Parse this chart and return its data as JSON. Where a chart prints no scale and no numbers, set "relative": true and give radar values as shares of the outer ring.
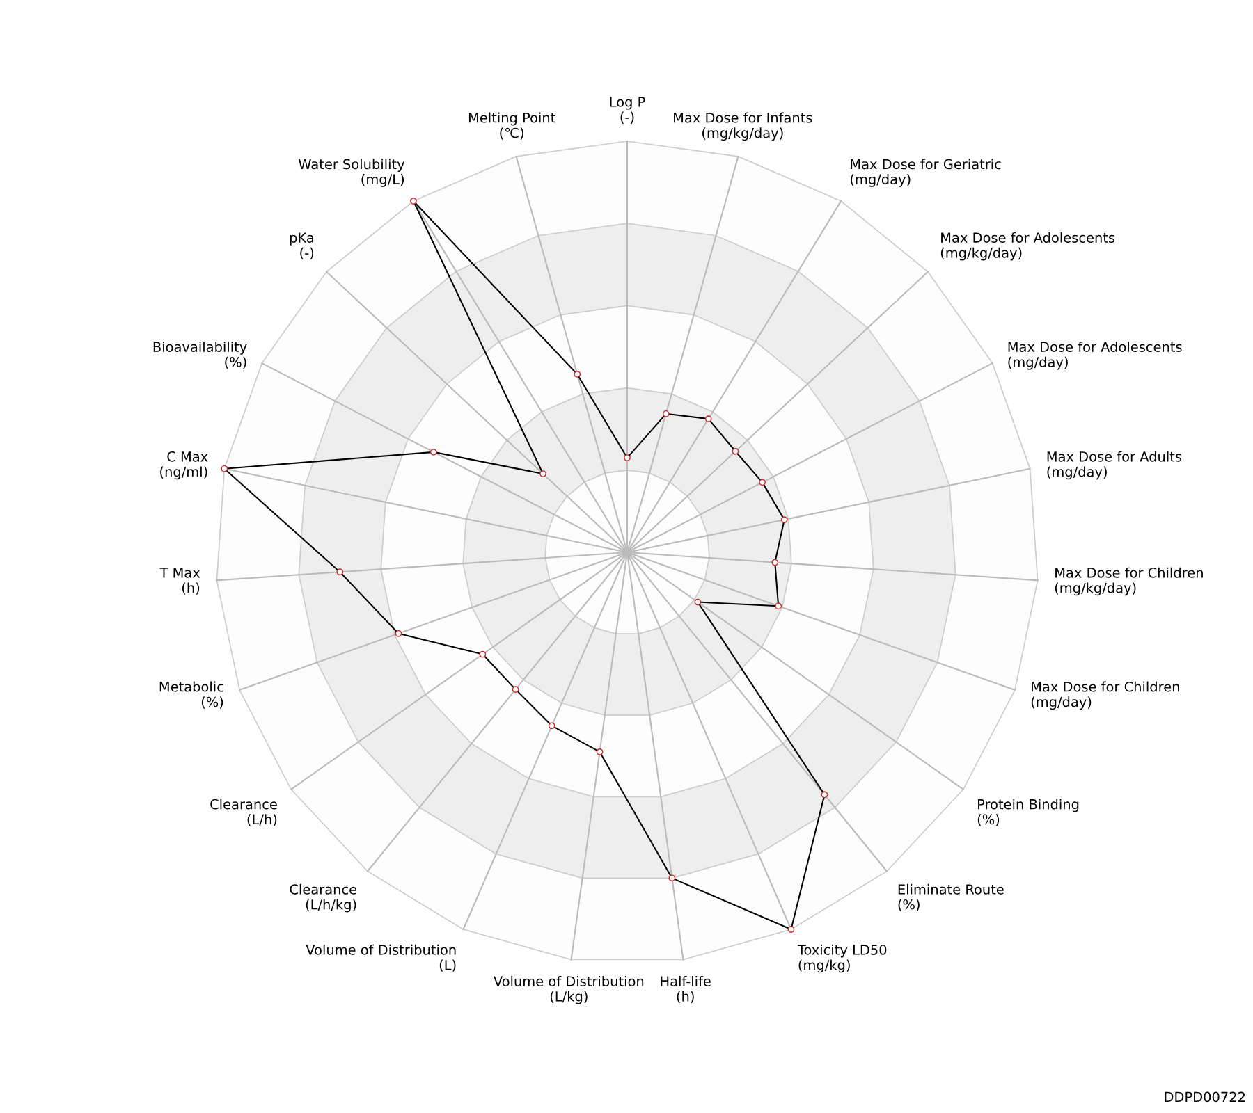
{
  "chart_data": {
    "type": "radar",
    "relative": true,
    "marker": "circle",
    "grid": true,
    "categories": [
      "Log P\n(-)",
      "Max Dose for Infants\n(mg/kg/day)",
      "Max Dose for Geriatric\n(mg/day)",
      "Max Dose for Adolescents\n(mg/kg/day)",
      "Max Dose for Adolescents\n(mg/day)",
      "Max Dose for Adults\n(mg/day)",
      "Max Dose for Children\n(mg/kg/day)",
      "Max Dose for Children\n(mg/day)",
      "Protein Binding\n(%)",
      "Eliminate Route\n(%)",
      "Toxicity LD50\n(mg/kg)",
      "Half-life\n(h)",
      "Volume of Distribution\n(L/kg)",
      "Volume of Distribution\n(L)",
      "Clearance\n(L/h/kg)",
      "Clearance\n(L/h)",
      "Metabolic\n(%)",
      "T Max\n(h)",
      "C Max\n(ng/ml)",
      "Bioavailability\n(%)",
      "pKa\n(-)",
      "Water Solubility\n(mg/L)",
      "Melting Point\n(℃)"
    ],
    "series": [
      {
        "color": "#000000",
        "values": [
          0.23,
          0.35,
          0.38,
          0.36,
          0.37,
          0.39,
          0.36,
          0.39,
          0.21,
          0.76,
          1.0,
          0.8,
          0.49,
          0.46,
          0.43,
          0.43,
          0.59,
          0.7,
          1.0,
          0.53,
          0.28,
          1.0,
          0.45
        ]
      }
    ],
    "annotations": [
      "DDPD00722"
    ]
  }
}
